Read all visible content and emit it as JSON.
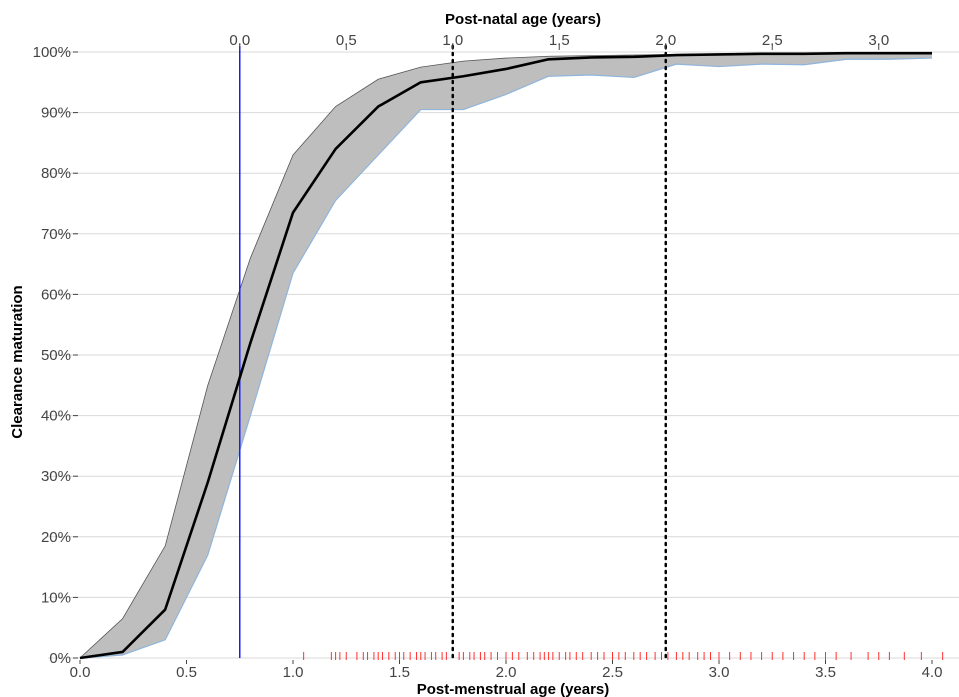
{
  "chart_data": {
    "type": "line",
    "xlabel": "Post-menstrual age (years)",
    "x2label": "Post-natal age (years)",
    "ylabel": "Clearance maturation",
    "xlim": [
      0.0,
      4.0
    ],
    "ylim": [
      0,
      100
    ],
    "x_ticks": [
      0.0,
      0.5,
      1.0,
      1.5,
      2.0,
      2.5,
      3.0,
      3.5,
      4.0
    ],
    "x_tick_labels": [
      "0.0",
      "0.5",
      "1.0",
      "1.5",
      "2.0",
      "2.5",
      "3.0",
      "3.5",
      "4.0"
    ],
    "x2_ticks": [
      0.0,
      0.5,
      1.0,
      1.5,
      2.0,
      2.5,
      3.0
    ],
    "x2_tick_labels": [
      "0.0",
      "0.5",
      "1.0",
      "1.5",
      "2.0",
      "2.5",
      "3.0"
    ],
    "x2_offset": 0.75,
    "y_ticks": [
      0,
      10,
      20,
      30,
      40,
      50,
      60,
      70,
      80,
      90,
      100
    ],
    "y_tick_labels": [
      "0%",
      "10%",
      "20%",
      "30%",
      "40%",
      "50%",
      "60%",
      "70%",
      "80%",
      "90%",
      "100%"
    ],
    "grid": true,
    "colors": {
      "median": "#000000",
      "band_fill": "#bebebe",
      "band_upper_edge": "#555555",
      "band_lower_edge": "#8fb5dc",
      "birth_line": "#1a1aff",
      "reference_lines": "#000000",
      "rug": "#ff3030",
      "grid": "#d9d9d9"
    },
    "series": [
      {
        "x": [
          0.0,
          0.2,
          0.4,
          0.6,
          0.8,
          1.0,
          1.2,
          1.4,
          1.6,
          1.8,
          2.0,
          2.2,
          2.4,
          2.6,
          2.8,
          3.0,
          3.2,
          3.4,
          3.6,
          3.8,
          4.0
        ],
        "values": [
          0,
          1,
          8,
          29,
          52,
          73.5,
          84,
          91,
          95,
          96,
          97.2,
          98.8,
          99.1,
          99.2,
          99.5,
          99.6,
          99.7,
          99.7,
          99.8,
          99.8,
          99.8
        ]
      }
    ],
    "band": {
      "x": [
        0.0,
        0.2,
        0.4,
        0.6,
        0.8,
        1.0,
        1.2,
        1.4,
        1.6,
        1.8,
        2.0,
        2.2,
        2.4,
        2.6,
        2.8,
        3.0,
        3.2,
        3.4,
        3.6,
        3.8,
        4.0
      ],
      "upper": [
        0,
        6.5,
        18.5,
        45,
        66,
        83,
        91,
        95.5,
        97.5,
        98.5,
        99,
        99.3,
        99.4,
        99.5,
        99.6,
        99.7,
        99.8,
        99.8,
        99.8,
        99.8,
        99.8
      ],
      "lower": [
        0,
        0.5,
        3,
        17,
        40,
        63.5,
        75.5,
        83,
        90.5,
        90.5,
        93,
        96,
        96.2,
        95.8,
        98,
        97.6,
        98,
        97.9,
        98.8,
        98.8,
        99
      ]
    },
    "vertical_lines": [
      {
        "x": 0.75,
        "style": "solid"
      },
      {
        "x": 1.75,
        "style": "dotted"
      },
      {
        "x": 2.75,
        "style": "dotted"
      }
    ],
    "rug_x": [
      1.05,
      1.18,
      1.2,
      1.22,
      1.25,
      1.3,
      1.33,
      1.35,
      1.38,
      1.4,
      1.42,
      1.45,
      1.48,
      1.5,
      1.52,
      1.55,
      1.58,
      1.6,
      1.62,
      1.65,
      1.67,
      1.7,
      1.72,
      1.78,
      1.8,
      1.83,
      1.85,
      1.88,
      1.9,
      1.93,
      1.96,
      2.0,
      2.03,
      2.06,
      2.1,
      2.13,
      2.16,
      2.18,
      2.2,
      2.22,
      2.25,
      2.28,
      2.3,
      2.33,
      2.36,
      2.4,
      2.43,
      2.46,
      2.5,
      2.53,
      2.56,
      2.6,
      2.63,
      2.66,
      2.7,
      2.73,
      2.76,
      2.8,
      2.83,
      2.86,
      2.9,
      2.93,
      2.96,
      3.0,
      3.05,
      3.1,
      3.15,
      3.2,
      3.25,
      3.3,
      3.35,
      3.4,
      3.45,
      3.5,
      3.55,
      3.62,
      3.7,
      3.75,
      3.8,
      3.87,
      3.95,
      4.05
    ]
  }
}
